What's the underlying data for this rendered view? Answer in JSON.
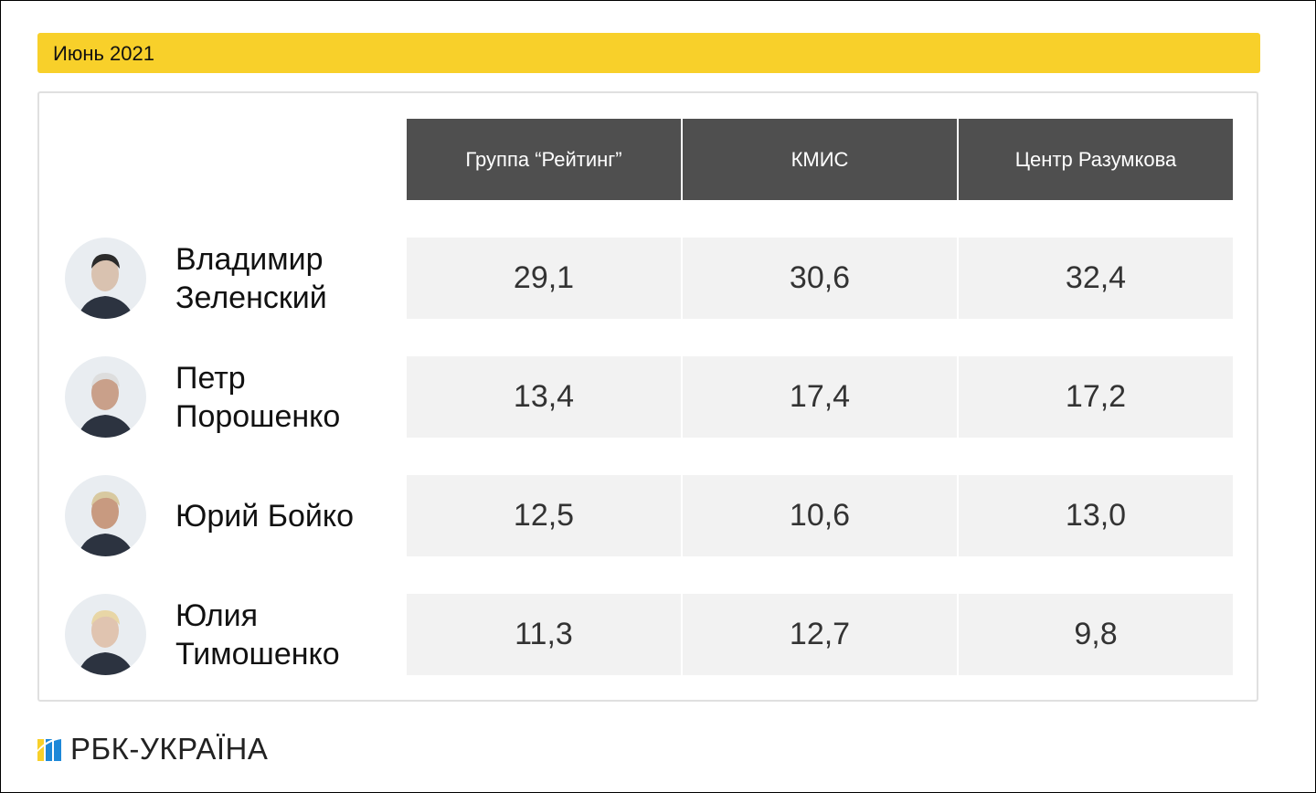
{
  "period": "Июнь 2021",
  "brand": "РБК-УКРАЇНА",
  "colors": {
    "accent": "#f8d02a",
    "header_bg": "#4f4f4f",
    "cell_bg": "#f2f2f2",
    "logo_yellow": "#f8d02a",
    "logo_blue": "#1e88d8"
  },
  "chart_data": {
    "type": "table",
    "columns": [
      "Группа “Рейтинг”",
      "КМИС",
      "Центр Разумкова"
    ],
    "rows": [
      {
        "name": "Владимир Зеленский",
        "avatar": "photo-zelensky",
        "values": [
          "29,1",
          "30,6",
          "32,4"
        ]
      },
      {
        "name": "Петр Порошенко",
        "avatar": "photo-poroshenko",
        "values": [
          "13,4",
          "17,4",
          "17,2"
        ]
      },
      {
        "name": "Юрий Бойко",
        "avatar": "photo-boyko",
        "values": [
          "12,5",
          "10,6",
          "13,0"
        ]
      },
      {
        "name": "Юлия Тимошенко",
        "avatar": "photo-tymoshenko",
        "values": [
          "11,3",
          "12,7",
          "9,8"
        ]
      }
    ]
  }
}
